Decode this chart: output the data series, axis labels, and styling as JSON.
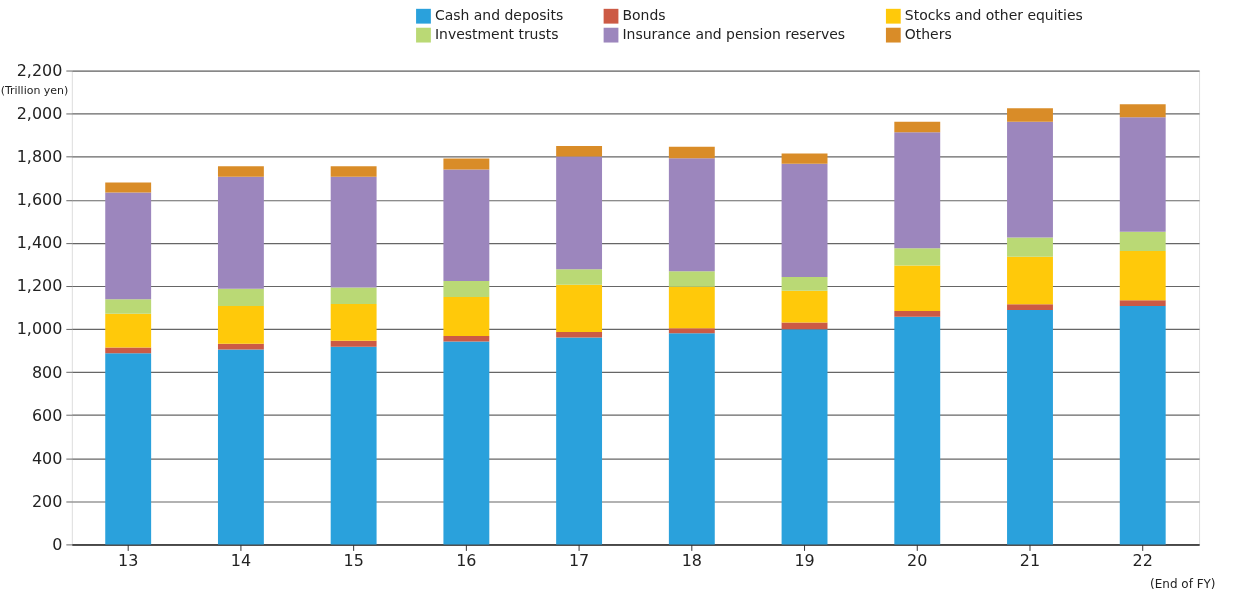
{
  "chart_data": {
    "type": "bar",
    "stacked": true,
    "ylabel": "(Trillion yen)",
    "xlabel": "(End of FY)",
    "categories": [
      "13",
      "14",
      "15",
      "16",
      "17",
      "18",
      "19",
      "20",
      "21",
      "22"
    ],
    "ylim": [
      0,
      2200
    ],
    "yticks": [
      {
        "value": 0,
        "label": "0"
      },
      {
        "value": 200,
        "label": "200"
      },
      {
        "value": 400,
        "label": "400"
      },
      {
        "value": 600,
        "label": "600"
      },
      {
        "value": 800,
        "label": "800"
      },
      {
        "value": 1000,
        "label": "1,000"
      },
      {
        "value": 1200,
        "label": "1,200"
      },
      {
        "value": 1400,
        "label": "1,400"
      },
      {
        "value": 1600,
        "label": "1,600"
      },
      {
        "value": 1800,
        "label": "1,800"
      },
      {
        "value": 2000,
        "label": "2,000"
      },
      {
        "value": 2200,
        "label": "2,200"
      }
    ],
    "grid": "y",
    "legend": "top right",
    "series": [
      {
        "name": "Cash and deposits",
        "color": "#2aa1dc",
        "values": [
          887,
          905,
          918,
          942,
          960,
          980,
          999,
          1057,
          1088,
          1107
        ]
      },
      {
        "name": "Bonds",
        "color": "#cc5a45",
        "values": [
          27,
          27,
          27,
          26,
          26,
          23,
          31,
          27,
          27,
          27
        ]
      },
      {
        "name": "Stocks and other equities",
        "color": "#ffc90a",
        "values": [
          157,
          175,
          171,
          181,
          219,
          193,
          148,
          211,
          221,
          228
        ]
      },
      {
        "name": "Investment trusts",
        "color": "#bad975",
        "values": [
          67,
          80,
          77,
          74,
          72,
          72,
          63,
          80,
          89,
          90
        ]
      },
      {
        "name": "Insurance and pension reserves",
        "color": "#9c86bd",
        "values": [
          496,
          520,
          514,
          517,
          524,
          525,
          526,
          538,
          537,
          531
        ]
      },
      {
        "name": "Others",
        "color": "#d98c28",
        "values": [
          46,
          49,
          49,
          52,
          49,
          53,
          48,
          49,
          63,
          60
        ]
      }
    ]
  }
}
